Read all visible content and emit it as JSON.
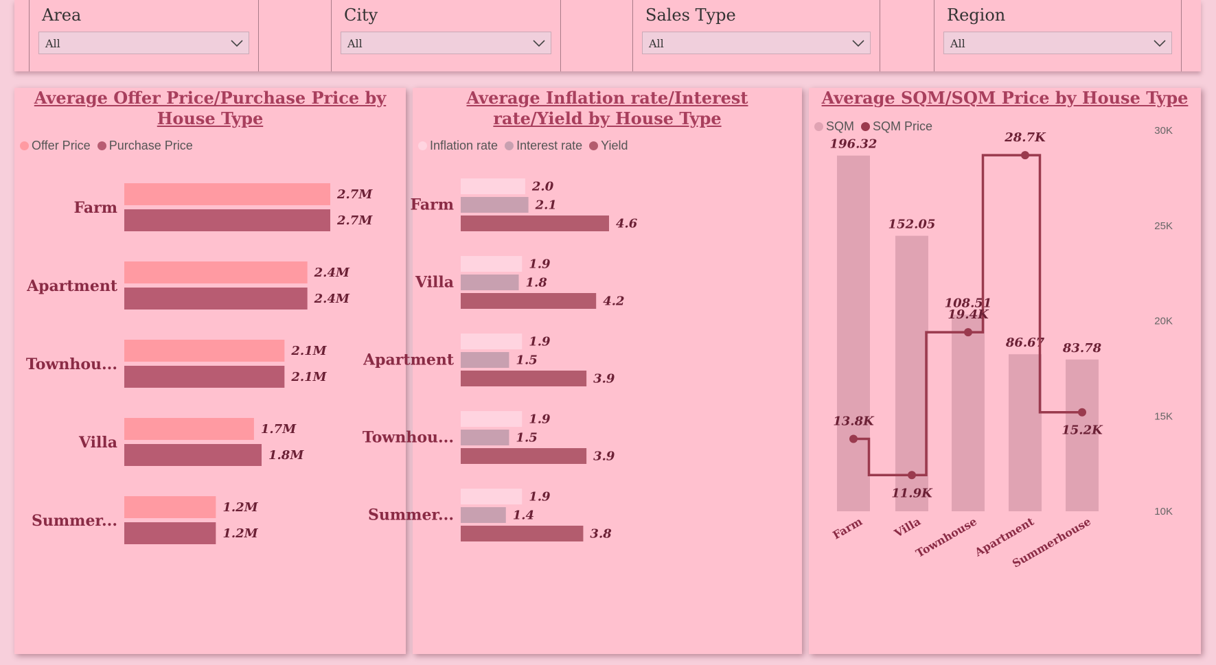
{
  "filters": [
    {
      "label": "Area",
      "value": "All"
    },
    {
      "label": "City",
      "value": "City All"
    },
    {
      "label": "Sales Type",
      "value": "All"
    },
    {
      "label": "Region",
      "value": "All"
    }
  ],
  "colors": {
    "offer": "#ff9aa2",
    "purchase": "#b85c72",
    "inflation": "#ffd4e0",
    "interest": "#c8a0b0",
    "yield": "#b35c6e",
    "sqm": "#e0a3b3",
    "sqm_price": "#9a3a4e",
    "title": "#a83f5d",
    "panel": "#ffc1cf"
  },
  "chart_data": [
    {
      "type": "bar",
      "orientation": "horizontal",
      "title": "Average Offer Price/Purchase Price by House Type",
      "categories": [
        "Farm",
        "Apartment",
        "Townhou...",
        "Villa",
        "Summer..."
      ],
      "series": [
        {
          "name": "Offer Price",
          "values": [
            2.7,
            2.4,
            2.1,
            1.7,
            1.2
          ],
          "labels": [
            "2.7M",
            "2.4M",
            "2.1M",
            "1.7M",
            "1.2M"
          ]
        },
        {
          "name": "Purchase Price",
          "values": [
            2.7,
            2.4,
            2.1,
            1.8,
            1.2
          ],
          "labels": [
            "2.7M",
            "2.4M",
            "2.1M",
            "1.8M",
            "1.2M"
          ]
        }
      ],
      "value_unit": "M",
      "legend": "top-left"
    },
    {
      "type": "bar",
      "orientation": "horizontal",
      "title": "Average Inflation rate/Interest rate/Yield by House Type",
      "categories": [
        "Farm",
        "Villa",
        "Apartment",
        "Townhou...",
        "Summer..."
      ],
      "series": [
        {
          "name": "Inflation rate",
          "values": [
            2.0,
            1.9,
            1.9,
            1.9,
            1.9
          ],
          "labels": [
            "2.0",
            "1.9",
            "1.9",
            "1.9",
            "1.9"
          ]
        },
        {
          "name": "Interest rate",
          "values": [
            2.1,
            1.8,
            1.5,
            1.5,
            1.4
          ],
          "labels": [
            "2.1",
            "1.8",
            "1.5",
            "1.5",
            "1.4"
          ]
        },
        {
          "name": "Yield",
          "values": [
            4.6,
            4.2,
            3.9,
            3.9,
            3.8
          ],
          "labels": [
            "4.6",
            "4.2",
            "3.9",
            "3.9",
            "3.8"
          ]
        }
      ],
      "legend": "top-left"
    },
    {
      "type": "bar",
      "combo": "bar + stepped line",
      "title": "Average SQM/SQM Price by House Type",
      "categories": [
        "Farm",
        "Villa",
        "Townhouse",
        "Apartment",
        "Summerhouse"
      ],
      "series": [
        {
          "name": "SQM",
          "values": [
            196.32,
            152.05,
            108.51,
            86.67,
            83.78
          ],
          "labels": [
            "196.32",
            "152.05",
            "108.51",
            "86.67",
            "83.78"
          ]
        },
        {
          "name": "SQM Price",
          "type": "line",
          "values": [
            13800,
            11900,
            19400,
            28700,
            15200
          ],
          "labels": [
            "13.8K",
            "11.9K",
            "19.4K",
            "28.7K",
            "15.2K"
          ]
        }
      ],
      "y2_ticks": [
        "10K",
        "15K",
        "20K",
        "25K",
        "30K"
      ],
      "y2lim": [
        10000,
        30000
      ],
      "ylim": [
        0,
        200
      ],
      "legend": "top-left"
    }
  ]
}
